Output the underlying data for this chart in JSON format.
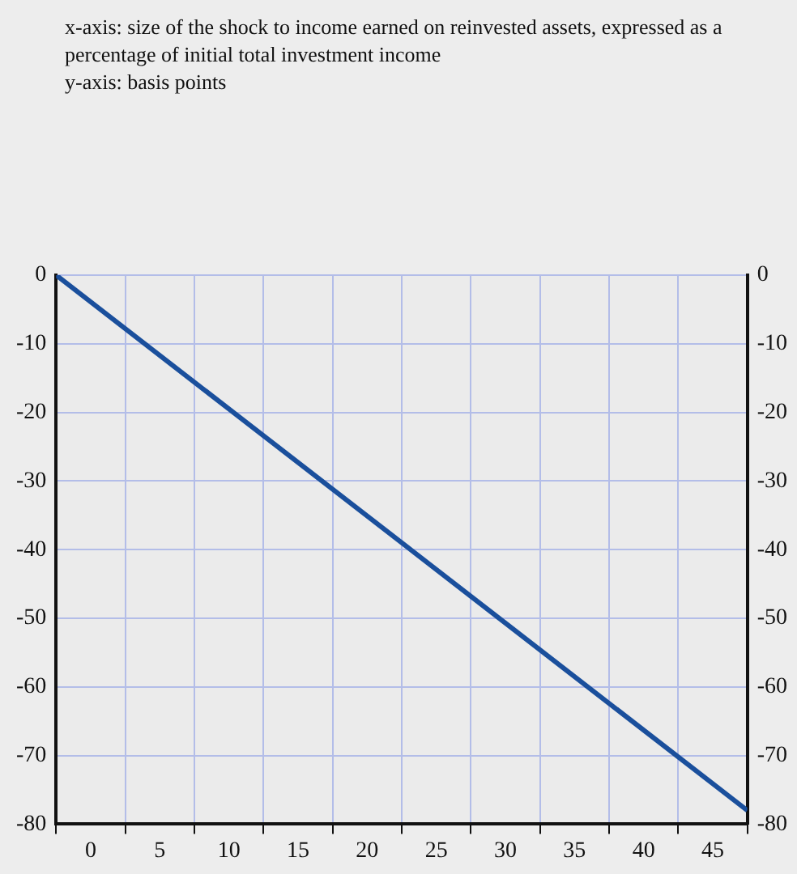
{
  "chart_data": {
    "type": "line",
    "annotations": [
      "x-axis: size of the shock to income earned on reinvested assets, expressed as a percentage of initial total investment income",
      "y-axis: basis points"
    ],
    "x": [
      -2.5,
      47.5
    ],
    "series": [
      {
        "color": "#1a4f9c",
        "values": [
          0,
          -78
        ]
      }
    ],
    "xlim": [
      -2.5,
      47.5
    ],
    "xticks": [
      0,
      5,
      10,
      15,
      20,
      25,
      30,
      35,
      40,
      45
    ],
    "ylim": [
      -80,
      0
    ],
    "yticks": [
      -80,
      -70,
      -60,
      -50,
      -40,
      -30,
      -20,
      -10,
      0
    ],
    "y2lim": [
      -80,
      0
    ],
    "y2ticks": [
      -80,
      -70,
      -60,
      -50,
      -40,
      -30,
      -20,
      -10,
      0
    ],
    "grid": true,
    "legend": false,
    "marker": "none",
    "line_style": "solid"
  }
}
